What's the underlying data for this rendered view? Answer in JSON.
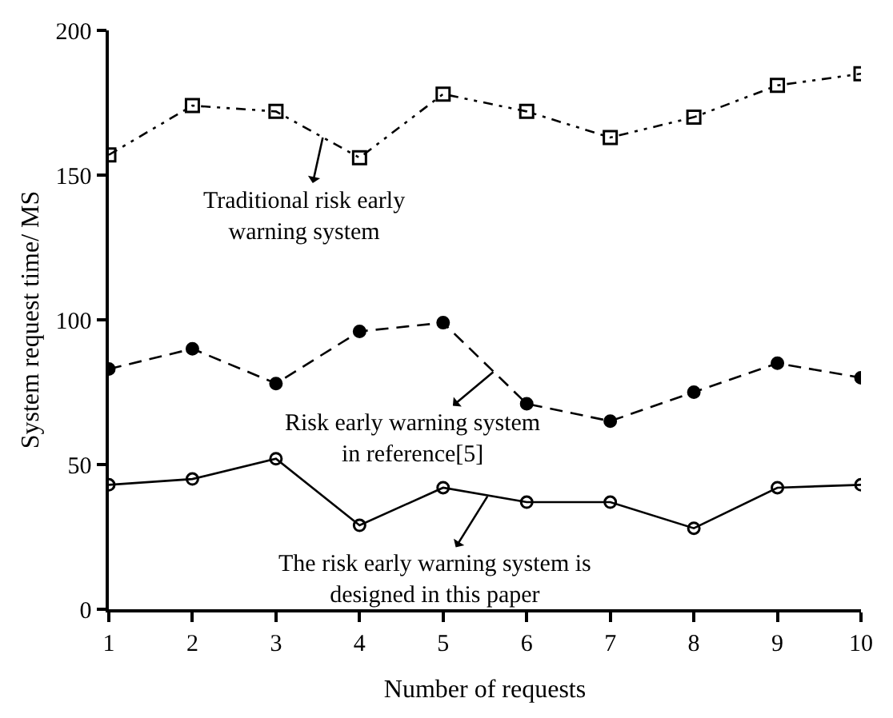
{
  "chart_data": {
    "type": "line",
    "xlabel": "Number of requests",
    "ylabel": "System request time/ MS",
    "x": [
      1,
      2,
      3,
      4,
      5,
      6,
      7,
      8,
      9,
      10
    ],
    "series": [
      {
        "color": "#000000",
        "marker": "square",
        "line_style": "dotted",
        "values": [
          157,
          174,
          172,
          156,
          178,
          172,
          163,
          170,
          181,
          185
        ]
      },
      {
        "color": "#000000",
        "marker": "circle",
        "line_style": "dashed",
        "values": [
          83,
          90,
          78,
          96,
          99,
          71,
          65,
          75,
          85,
          80
        ]
      },
      {
        "color": "#000000",
        "marker": "circle-open",
        "line_style": "solid",
        "values": [
          43,
          45,
          52,
          29,
          42,
          37,
          37,
          28,
          42,
          43
        ]
      }
    ],
    "annotations": [
      {
        "text": "Traditional risk early\nwarning system",
        "x": 3.56,
        "y": 163
      },
      {
        "text": "Risk early warning system\nin reference[5]",
        "x": 5.6,
        "y": 82
      },
      {
        "text": "The risk early warning system is\ndesigned in this paper",
        "x": 5.53,
        "y": 39
      }
    ],
    "xlim": [
      1,
      10
    ],
    "xticks": [
      1,
      2,
      3,
      4,
      5,
      6,
      7,
      8,
      9,
      10
    ],
    "ylim": [
      0,
      200
    ],
    "yticks": [
      0,
      50,
      100,
      150,
      200
    ]
  }
}
